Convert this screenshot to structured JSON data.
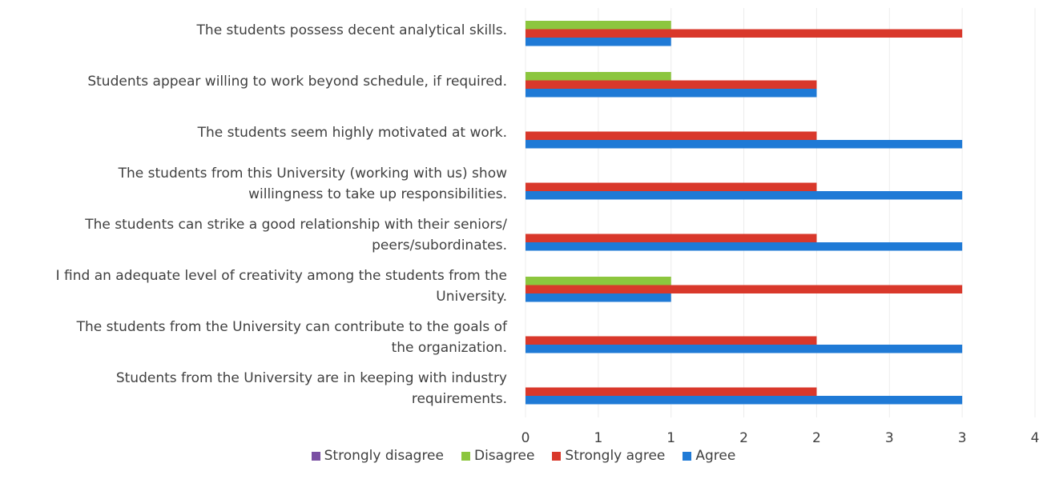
{
  "chart_data": {
    "type": "hbar",
    "categories": [
      "The students possess decent analytical skills.",
      "Students appear willing to work beyond schedule, if required.",
      "The students seem highly motivated at work.",
      "The students from this University (working with us) show\nwillingness to take up responsibilities.",
      "The students can strike a good relationship with their seniors/\npeers/subordinates.",
      "I find an adequate level of creativity among the students from the\nUniversity.",
      "The students from the University can contribute to the goals of\nthe organization.",
      "Students from the University are in keeping with industry\nrequirements."
    ],
    "series": [
      {
        "name": "Strongly disagree",
        "color": "#7a4fa3",
        "values": [
          0,
          0,
          0,
          0,
          0,
          0,
          0,
          0
        ]
      },
      {
        "name": "Disagree",
        "color": "#8cc63e",
        "values": [
          1,
          1,
          0,
          0,
          0,
          1,
          0,
          0
        ]
      },
      {
        "name": "Strongly agree",
        "color": "#d9382b",
        "values": [
          3,
          2,
          2,
          2,
          2,
          3,
          2,
          2
        ]
      },
      {
        "name": "Agree",
        "color": "#1f7ad6",
        "values": [
          1,
          2,
          3,
          3,
          3,
          1,
          3,
          3
        ]
      }
    ],
    "xlim": [
      0,
      3.5
    ],
    "xticks": [
      0,
      {
        "value": 0.5,
        "label": "1"
      },
      1,
      {
        "value": 1.5,
        "label": "2"
      },
      2,
      {
        "value": 2.5,
        "label": "3"
      },
      3,
      {
        "value": 3.5,
        "label": "4"
      }
    ],
    "grid": true,
    "legend": "bottom"
  }
}
